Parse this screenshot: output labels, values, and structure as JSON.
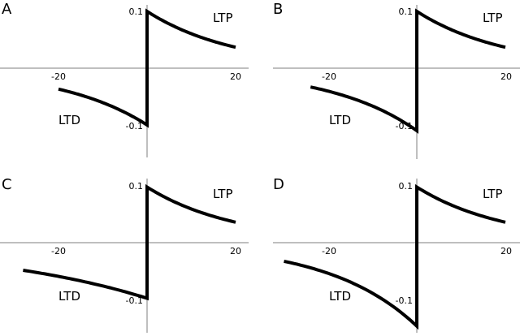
{
  "chart_data": [
    {
      "type": "line",
      "panel": "A",
      "xlabel": "",
      "ylabel": "",
      "xticks": [
        -20,
        20
      ],
      "yticks": [
        -0.1,
        0.1
      ],
      "annotations": [
        "LTP",
        "LTD"
      ],
      "ltp": {
        "amplitude": 0.1,
        "tau": 20,
        "x_range": [
          0,
          20
        ]
      },
      "ltd": {
        "amplitude": -0.1,
        "tau": 20,
        "x_range": [
          -20,
          0
        ]
      }
    },
    {
      "type": "line",
      "panel": "B",
      "xlabel": "",
      "ylabel": "",
      "xticks": [
        -20,
        20
      ],
      "yticks": [
        -0.1,
        0.1
      ],
      "annotations": [
        "LTP",
        "LTD"
      ],
      "ltp": {
        "amplitude": 0.1,
        "tau": 20,
        "x_range": [
          0,
          20
        ]
      },
      "ltd": {
        "amplitude": -0.11,
        "tau": 20,
        "x_range": [
          -24,
          0
        ]
      }
    },
    {
      "type": "line",
      "panel": "C",
      "xlabel": "",
      "ylabel": "",
      "xticks": [
        -20,
        20
      ],
      "yticks": [
        -0.1,
        0.1
      ],
      "annotations": [
        "LTP",
        "LTD"
      ],
      "ltp": {
        "amplitude": 0.1,
        "tau": 20,
        "x_range": [
          0,
          20
        ]
      },
      "ltd": {
        "amplitude": -0.1,
        "tau": 40,
        "x_range": [
          -28,
          0
        ]
      }
    },
    {
      "type": "line",
      "panel": "D",
      "xlabel": "",
      "ylabel": "",
      "xticks": [
        -20,
        20
      ],
      "yticks": [
        -0.1,
        0.1
      ],
      "annotations": [
        "LTP",
        "LTD"
      ],
      "ltp": {
        "amplitude": 0.1,
        "tau": 20,
        "x_range": [
          0,
          20
        ]
      },
      "ltd": {
        "amplitude": -0.15,
        "tau": 20,
        "x_range": [
          -30,
          0
        ]
      }
    }
  ]
}
